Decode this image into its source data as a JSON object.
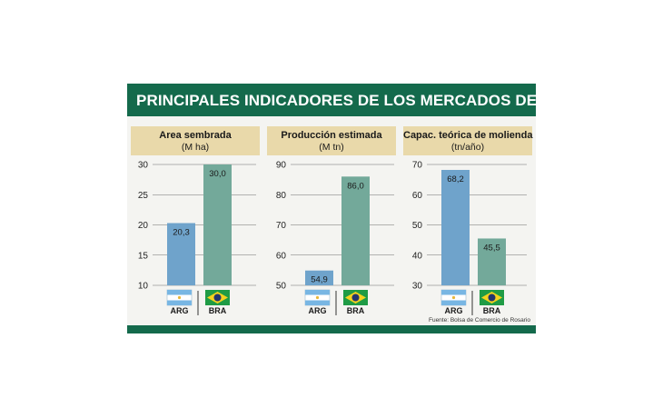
{
  "title": "PRINCIPALES INDICADORES DE LOS MERCADOS DE SOJA",
  "source": "Fuente: Bolsa de Comercio de Rosario",
  "colors": {
    "header_bg": "#146a4c",
    "subheader_bg": "#e9d9aa",
    "arg": "#6fa3cb",
    "bra": "#73a99a"
  },
  "chart_data": [
    {
      "type": "bar",
      "title": "Area sembrada",
      "subtitle": "(M ha)",
      "categories": [
        "ARG",
        "BRA"
      ],
      "values": [
        20.3,
        30.0
      ],
      "value_labels": [
        "20,3",
        "30,0"
      ],
      "ylim": [
        10,
        30
      ],
      "yticks": [
        "10",
        "15",
        "20",
        "25",
        "30"
      ],
      "grid": true
    },
    {
      "type": "bar",
      "title": "Producción estimada",
      "subtitle": "(M tn)",
      "categories": [
        "ARG",
        "BRA"
      ],
      "values": [
        54.9,
        86.0
      ],
      "value_labels": [
        "54,9",
        "86,0"
      ],
      "ylim": [
        50,
        90
      ],
      "yticks": [
        "50",
        "60",
        "70",
        "80",
        "90"
      ],
      "grid": true
    },
    {
      "type": "bar",
      "title": "Capac. teórica de molienda",
      "subtitle": "(tn/año)",
      "categories": [
        "ARG",
        "BRA"
      ],
      "values": [
        68.2,
        45.5
      ],
      "value_labels": [
        "68,2",
        "45,5"
      ],
      "ylim": [
        30,
        70
      ],
      "yticks": [
        "30",
        "40",
        "50",
        "60",
        "70"
      ],
      "grid": true
    }
  ]
}
